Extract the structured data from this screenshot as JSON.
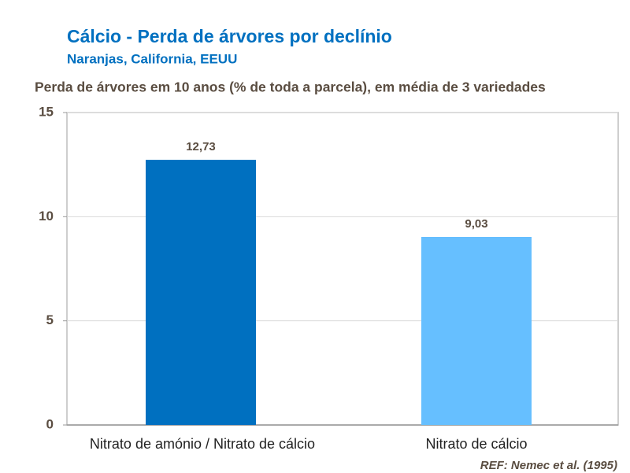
{
  "chart_data": {
    "type": "bar",
    "title": "Cálcio - Perda de árvores por declínio",
    "subtitle": "Naranjas, California, EEUU",
    "y_label": "Perda de árvores em 10 anos (% de toda a parcela), em média de 3 variedades",
    "categories": [
      "Nitrato de amónio / Nitrato de cálcio",
      "Nitrato de cálcio"
    ],
    "values": [
      12.73,
      9.03
    ],
    "value_labels": [
      "12,73",
      "9,03"
    ],
    "colors": [
      "#0070c0",
      "#66bfff"
    ],
    "ylim": [
      0,
      15
    ],
    "yticks": [
      0,
      5,
      10,
      15
    ],
    "grid": true,
    "note": "REF: Nemec et al. (1995)"
  }
}
